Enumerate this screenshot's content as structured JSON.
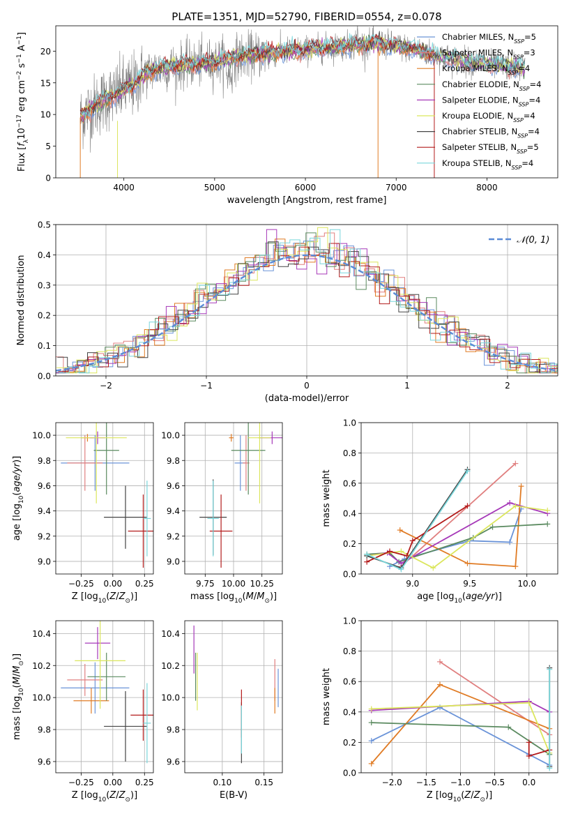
{
  "figure": {
    "title": "PLATE=1351, MJD=52790, FIBERID=0554, z=0.078"
  },
  "models": [
    {
      "name": "Chabrier MILES",
      "nssp": "5",
      "color": "#6a93d8"
    },
    {
      "name": "Salpeter MILES",
      "nssp": "3",
      "color": "#e07f7f"
    },
    {
      "name": "Kroupa MILES",
      "nssp": "4",
      "color": "#e07b24"
    },
    {
      "name": "Chabrier ELODIE",
      "nssp": "4",
      "color": "#5a8a5f"
    },
    {
      "name": "Salpeter ELODIE",
      "nssp": "4",
      "color": "#a638b8"
    },
    {
      "name": "Kroupa ELODIE",
      "nssp": "4",
      "color": "#dbe65c"
    },
    {
      "name": "Chabrier STELIB",
      "nssp": "4",
      "color": "#444444"
    },
    {
      "name": "Salpeter STELIB",
      "nssp": "5",
      "color": "#b31b1b"
    },
    {
      "name": "Kroupa STELIB",
      "nssp": "4",
      "color": "#79d6db"
    }
  ],
  "chart_data": [
    {
      "id": "spectrum",
      "type": "line",
      "xlabel": "wavelength [Angstrom, rest frame]",
      "ylabel": "Flux [f_λ10^-17 erg cm^-2 s^-1 A^-1]",
      "xlim": [
        3250,
        8780
      ],
      "ylim": [
        0,
        24
      ],
      "xticks": [
        4000,
        5000,
        6000,
        7000,
        8000
      ],
      "yticks": [
        0,
        5,
        10,
        15,
        20
      ],
      "legend_position": "right",
      "observed_color": "#808080",
      "continuum_knots": {
        "x": [
          3520,
          3600,
          3700,
          3800,
          3900,
          4000,
          4100,
          4200,
          4300,
          4500,
          4800,
          5000,
          5200,
          5500,
          5800,
          6000,
          6200,
          6400,
          6600,
          6800,
          7000,
          7200,
          7400,
          7600,
          7800,
          8000,
          8200,
          8400
        ],
        "y": [
          9.5,
          10.5,
          11.5,
          12.5,
          13,
          14,
          14.5,
          16,
          17,
          17.5,
          18,
          18.3,
          19,
          19.5,
          20,
          20.2,
          20.5,
          20.8,
          21,
          21.3,
          20.8,
          20.3,
          19.5,
          18.8,
          18.3,
          18,
          17.6,
          17.4
        ]
      }
    },
    {
      "id": "residuals",
      "type": "histogram",
      "xlabel": "(data-model)/error",
      "ylabel": "Normed distribution",
      "xlim": [
        -2.5,
        2.5
      ],
      "ylim": [
        0,
        0.5
      ],
      "xticks": [
        -2,
        -1,
        0,
        1,
        2
      ],
      "yticks": [
        0.0,
        0.1,
        0.2,
        0.3,
        0.4,
        0.5
      ],
      "grid": true,
      "legend_position": "top-right",
      "reference_curve": {
        "label": "𝒩(0, 1)",
        "style": "dashed",
        "color": "#5b8bd6",
        "mean": 0,
        "sigma": 1
      },
      "bin_width": 0.1
    },
    {
      "id": "age_vs_Z",
      "type": "scatter",
      "xlabel": "Z [log10(Z/Z_sun)]",
      "ylabel": "age [log10(age/yr)]",
      "xlim": [
        -0.45,
        0.32
      ],
      "ylim": [
        8.9,
        10.1
      ],
      "xticks": [
        -0.25,
        0.0,
        0.25
      ],
      "yticks": [
        9.0,
        9.2,
        9.4,
        9.6,
        9.8,
        10.0
      ],
      "grid": true,
      "points": [
        {
          "x": -0.14,
          "y": 9.78,
          "xerr": 0.27,
          "yerr": 0.22
        },
        {
          "x": -0.22,
          "y": 9.78,
          "xerr": 0.14,
          "yerr": 0.22
        },
        {
          "x": -0.2,
          "y": 9.98,
          "xerr": 0.05,
          "yerr": 0.03
        },
        {
          "x": -0.05,
          "y": 9.88,
          "xerr": 0.1,
          "yerr": 0.35
        },
        {
          "x": -0.12,
          "y": 9.98,
          "xerr": 0.06,
          "yerr": 0.05
        },
        {
          "x": -0.13,
          "y": 9.98,
          "xerr": 0.24,
          "yerr": 0.52
        },
        {
          "x": 0.1,
          "y": 9.35,
          "xerr": 0.17,
          "yerr": 0.25
        },
        {
          "x": 0.24,
          "y": 9.24,
          "xerr": 0.12,
          "yerr": 0.29
        },
        {
          "x": 0.27,
          "y": 9.34,
          "xerr": 0.03,
          "yerr": 0.3
        }
      ]
    },
    {
      "id": "age_vs_mass",
      "type": "scatter",
      "xlabel": "mass [log10(M/M_sun)]",
      "ylabel": "",
      "xlim": [
        9.57,
        10.43
      ],
      "ylim": [
        8.9,
        10.1
      ],
      "xticks": [
        9.75,
        10.0,
        10.25
      ],
      "yticks": [
        9.0,
        9.2,
        9.4,
        9.6,
        9.8,
        10.0
      ],
      "grid": true,
      "points": [
        {
          "x": 10.06,
          "y": 9.78,
          "xerr": 0.05,
          "yerr": 0.22
        },
        {
          "x": 10.11,
          "y": 9.78,
          "xerr": 0.03,
          "yerr": 0.22
        },
        {
          "x": 9.98,
          "y": 9.98,
          "xerr": 0.02,
          "yerr": 0.03
        },
        {
          "x": 10.13,
          "y": 9.88,
          "xerr": 0.15,
          "yerr": 0.35
        },
        {
          "x": 10.34,
          "y": 9.98,
          "xerr": 0.12,
          "yerr": 0.05
        },
        {
          "x": 10.23,
          "y": 9.98,
          "xerr": 0.1,
          "yerr": 0.52
        },
        {
          "x": 9.82,
          "y": 9.35,
          "xerr": 0.12,
          "yerr": 0.3
        },
        {
          "x": 9.89,
          "y": 9.24,
          "xerr": 0.1,
          "yerr": 0.29
        },
        {
          "x": 9.82,
          "y": 9.34,
          "xerr": 0.05,
          "yerr": 0.3
        }
      ]
    },
    {
      "id": "massweight_vs_age",
      "type": "line",
      "xlabel": "age [log10(age/yr)]",
      "ylabel": "mass weight",
      "xlim": [
        8.55,
        10.27
      ],
      "ylim": [
        0.0,
        1.0
      ],
      "xticks": [
        9.0,
        9.5,
        10.0
      ],
      "yticks": [
        0.0,
        0.2,
        0.4,
        0.6,
        0.8,
        1.0
      ],
      "grid": true,
      "series": [
        {
          "x": [
            8.8,
            8.93,
            9.5,
            9.85,
            9.95
          ],
          "y": [
            0.05,
            0.1,
            0.22,
            0.21,
            0.43
          ]
        },
        {
          "x": [
            8.9,
            9.9
          ],
          "y": [
            0.05,
            0.73
          ]
        },
        {
          "x": [
            8.89,
            9.48,
            9.9,
            9.95
          ],
          "y": [
            0.29,
            0.07,
            0.05,
            0.58
          ]
        },
        {
          "x": [
            8.6,
            8.8,
            8.88,
            9.53,
            9.7,
            10.18
          ],
          "y": [
            0.13,
            0.14,
            0.08,
            0.24,
            0.31,
            0.33
          ]
        },
        {
          "x": [
            8.6,
            8.78,
            8.9,
            9.85,
            10.18
          ],
          "y": [
            0.12,
            0.14,
            0.07,
            0.47,
            0.4
          ]
        },
        {
          "x": [
            8.6,
            8.9,
            9.18,
            9.9,
            10.18
          ],
          "y": [
            0.12,
            0.15,
            0.04,
            0.45,
            0.42
          ]
        },
        {
          "x": [
            8.6,
            8.9,
            9.48
          ],
          "y": [
            0.12,
            0.04,
            0.69
          ]
        },
        {
          "x": [
            8.6,
            8.8,
            8.95,
            9.0,
            9.48
          ],
          "y": [
            0.08,
            0.15,
            0.12,
            0.22,
            0.45
          ]
        },
        {
          "x": [
            8.6,
            8.9,
            9.48
          ],
          "y": [
            0.13,
            0.03,
            0.68
          ]
        }
      ]
    },
    {
      "id": "mass_vs_Z",
      "type": "scatter",
      "xlabel": "Z [log10(Z/Z_sun)]",
      "ylabel": "mass [log10(M/M_sun)]",
      "xlim": [
        -0.45,
        0.32
      ],
      "ylim": [
        9.53,
        10.48
      ],
      "xticks": [
        -0.25,
        0.0,
        0.25
      ],
      "yticks": [
        9.6,
        9.8,
        10.0,
        10.2,
        10.4
      ],
      "grid": true,
      "points": [
        {
          "x": -0.14,
          "y": 10.06,
          "xerr": 0.27,
          "yerr": 0.16
        },
        {
          "x": -0.22,
          "y": 10.11,
          "xerr": 0.14,
          "yerr": 0.1
        },
        {
          "x": -0.17,
          "y": 9.98,
          "xerr": 0.14,
          "yerr": 0.08
        },
        {
          "x": -0.05,
          "y": 10.13,
          "xerr": 0.15,
          "yerr": 0.15
        },
        {
          "x": -0.12,
          "y": 10.34,
          "xerr": 0.1,
          "yerr": 0.1
        },
        {
          "x": -0.1,
          "y": 10.23,
          "xerr": 0.2,
          "yerr": 0.3
        },
        {
          "x": 0.1,
          "y": 9.82,
          "xerr": 0.17,
          "yerr": 0.22
        },
        {
          "x": 0.24,
          "y": 9.89,
          "xerr": 0.1,
          "yerr": 0.16
        },
        {
          "x": 0.27,
          "y": 9.84,
          "xerr": 0.03,
          "yerr": 0.25
        }
      ]
    },
    {
      "id": "mass_vs_ebv",
      "type": "scatter",
      "xlabel": "E(B-V)",
      "ylabel": "",
      "xlim": [
        0.055,
        0.172
      ],
      "ylim": [
        9.53,
        10.48
      ],
      "xticks": [
        0.1,
        0.15
      ],
      "yticks": [
        9.6,
        9.8,
        10.0,
        10.2,
        10.4
      ],
      "grid": true,
      "points": [
        {
          "x": 0.167,
          "y": 10.06,
          "xerr": 0,
          "yerr": 0.12
        },
        {
          "x": 0.163,
          "y": 10.11,
          "xerr": 0,
          "yerr": 0.13
        },
        {
          "x": 0.163,
          "y": 9.98,
          "xerr": 0,
          "yerr": 0.08
        },
        {
          "x": 0.068,
          "y": 10.13,
          "xerr": 0,
          "yerr": 0.15
        },
        {
          "x": 0.066,
          "y": 10.3,
          "xerr": 0,
          "yerr": 0.15
        },
        {
          "x": 0.07,
          "y": 10.1,
          "xerr": 0,
          "yerr": 0.18
        },
        {
          "x": 0.123,
          "y": 9.78,
          "xerr": 0,
          "yerr": 0.19
        },
        {
          "x": 0.123,
          "y": 9.9,
          "xerr": 0,
          "yerr": 0.15
        },
        {
          "x": 0.123,
          "y": 9.8,
          "xerr": 0,
          "yerr": 0.15
        }
      ]
    },
    {
      "id": "massweight_vs_Z",
      "type": "line",
      "xlabel": "Z [log10(Z/Z_sun)]",
      "ylabel": "mass weight",
      "xlim": [
        -2.45,
        0.42
      ],
      "ylim": [
        0.0,
        1.0
      ],
      "xticks": [
        -2.0,
        -1.5,
        -1.0,
        -0.5,
        0.0
      ],
      "yticks": [
        0.0,
        0.2,
        0.4,
        0.6,
        0.8,
        1.0
      ],
      "grid": true,
      "series": [
        {
          "x": [
            -2.3,
            -1.3,
            0.0,
            0.3
          ],
          "y": [
            0.21,
            0.43,
            0.12,
            0.05
          ]
        },
        {
          "x": [
            -1.3,
            0.3
          ],
          "y": [
            0.73,
            0.25
          ]
        },
        {
          "x": [
            -2.3,
            -1.3,
            0.3
          ],
          "y": [
            0.06,
            0.58,
            0.29
          ]
        },
        {
          "x": [
            -2.3,
            -0.3,
            0.3
          ],
          "y": [
            0.33,
            0.3,
            0.12
          ]
        },
        {
          "x": [
            -2.3,
            0.0,
            0.3
          ],
          "y": [
            0.41,
            0.47,
            0.4
          ]
        },
        {
          "x": [
            -2.3,
            0.0,
            0.3
          ],
          "y": [
            0.42,
            0.46,
            0.13
          ]
        },
        {
          "x": [
            0.3,
            0.3
          ],
          "y": [
            0.69,
            0.04
          ]
        },
        {
          "x": [
            0.0,
            0.0,
            0.3
          ],
          "y": [
            0.2,
            0.11,
            0.15
          ]
        },
        {
          "x": [
            0.3,
            0.3
          ],
          "y": [
            0.68,
            0.03
          ]
        }
      ]
    }
  ]
}
